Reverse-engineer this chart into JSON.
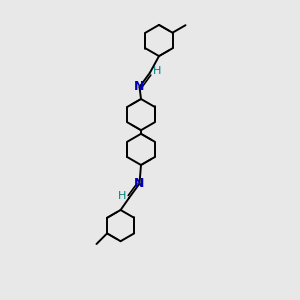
{
  "bg_color": "#e8e8e8",
  "bond_color": "#000000",
  "N_color": "#0000bb",
  "H_color": "#008080",
  "line_width": 1.4,
  "font_size_N": 9,
  "font_size_H": 8,
  "ring_r": 0.52,
  "xlim": [
    0,
    6
  ],
  "ylim": [
    0,
    10
  ]
}
